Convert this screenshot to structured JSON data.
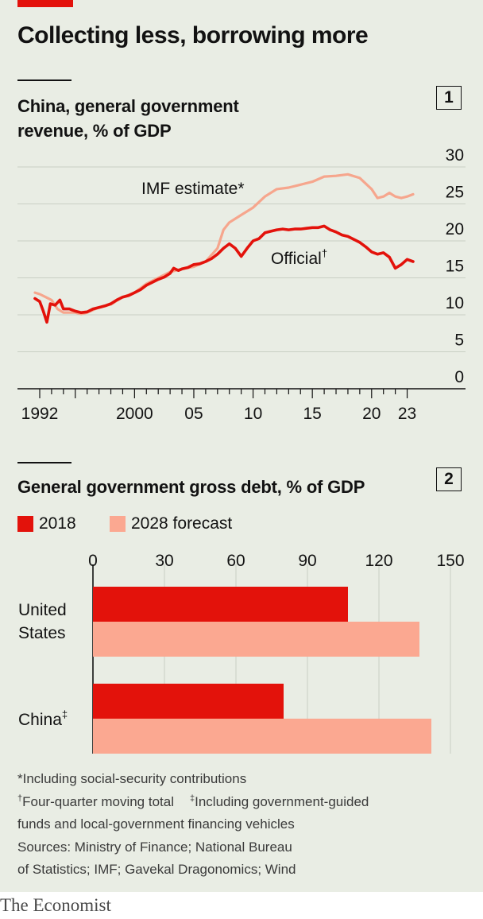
{
  "headline": "Collecting less, borrowing more",
  "brand": "The Economist",
  "colors": {
    "red": "#e3120b",
    "pink": "#f6a68d",
    "light_red": "#fba891",
    "background": "#e9ede4",
    "grid": "#c9cfc4"
  },
  "panel1": {
    "badge": "1",
    "title_line1": "China, general government",
    "title_line2": "revenue, % of GDP",
    "label_imf": "IMF estimate*",
    "label_official": "Official",
    "label_official_mark": "†"
  },
  "panel2": {
    "badge": "2",
    "title": "General government gross debt, % of GDP",
    "legend_2018": "2018",
    "legend_2028": "2028 forecast",
    "row_us_line1": "United",
    "row_us_line2": "States",
    "row_china": "China",
    "row_china_mark": "‡"
  },
  "notes": {
    "line1": "*Including social-security contributions",
    "line2a_mark": "†",
    "line2a": "Four-quarter moving total",
    "line2b_mark": "‡",
    "line2b": "Including government-guided",
    "line3": "funds and local-government financing vehicles",
    "line4": "Sources: Ministry of Finance; National Bureau",
    "line5": "of Statistics; IMF; Gavekal Dragonomics; Wind"
  },
  "chart_data": [
    {
      "type": "line",
      "title": "China, general government revenue, % of GDP",
      "ylim": [
        0,
        30
      ],
      "yticks": [
        0,
        5,
        10,
        15,
        20,
        25,
        30
      ],
      "xlim": [
        1991.5,
        2024.5
      ],
      "xtick_labels": [
        {
          "x": 1992,
          "label": "1992"
        },
        {
          "x": 2000,
          "label": "2000"
        },
        {
          "x": 2005,
          "label": "05"
        },
        {
          "x": 2010,
          "label": "10"
        },
        {
          "x": 2015,
          "label": "15"
        },
        {
          "x": 2020,
          "label": "20"
        },
        {
          "x": 2023,
          "label": "23"
        }
      ],
      "grid": true,
      "series": [
        {
          "name": "IMF estimate*",
          "color": "#f6a68d",
          "points": [
            [
              1991.6,
              13.0
            ],
            [
              1992.0,
              12.8
            ],
            [
              1992.5,
              12.4
            ],
            [
              1993.0,
              12.0
            ],
            [
              1993.5,
              10.8
            ],
            [
              1994.0,
              10.3
            ],
            [
              1995.0,
              10.3
            ],
            [
              1995.5,
              10.1
            ],
            [
              1996.0,
              10.3
            ],
            [
              1997.0,
              11.0
            ],
            [
              1998.0,
              11.4
            ],
            [
              1999.0,
              12.4
            ],
            [
              2000.0,
              13.0
            ],
            [
              2001.0,
              14.2
            ],
            [
              2002.0,
              15.0
            ],
            [
              2003.0,
              15.8
            ],
            [
              2004.0,
              16.2
            ],
            [
              2005.0,
              16.5
            ],
            [
              2006.0,
              17.2
            ],
            [
              2007.0,
              19.0
            ],
            [
              2007.5,
              21.5
            ],
            [
              2008.0,
              22.5
            ],
            [
              2009.0,
              23.5
            ],
            [
              2010.0,
              24.5
            ],
            [
              2011.0,
              26.0
            ],
            [
              2012.0,
              27.0
            ],
            [
              2013.0,
              27.2
            ],
            [
              2014.0,
              27.6
            ],
            [
              2015.0,
              28.0
            ],
            [
              2016.0,
              28.7
            ],
            [
              2017.0,
              28.8
            ],
            [
              2018.0,
              29.0
            ],
            [
              2019.0,
              28.5
            ],
            [
              2020.0,
              27.0
            ],
            [
              2020.5,
              25.8
            ],
            [
              2021.0,
              26.0
            ],
            [
              2021.5,
              26.5
            ],
            [
              2022.0,
              26.0
            ],
            [
              2022.5,
              25.8
            ],
            [
              2023.0,
              26.0
            ],
            [
              2023.5,
              26.3
            ]
          ]
        },
        {
          "name": "Official",
          "color": "#e3120b",
          "points": [
            [
              1991.6,
              12.2
            ],
            [
              1992.0,
              11.8
            ],
            [
              1992.3,
              10.5
            ],
            [
              1992.6,
              9.0
            ],
            [
              1992.9,
              11.5
            ],
            [
              1993.3,
              11.3
            ],
            [
              1993.7,
              12.0
            ],
            [
              1994.0,
              10.8
            ],
            [
              1994.5,
              10.8
            ],
            [
              1995.0,
              10.5
            ],
            [
              1995.5,
              10.3
            ],
            [
              1996.0,
              10.4
            ],
            [
              1996.5,
              10.8
            ],
            [
              1997.0,
              11.0
            ],
            [
              1997.5,
              11.2
            ],
            [
              1998.0,
              11.5
            ],
            [
              1998.5,
              12.0
            ],
            [
              1999.0,
              12.4
            ],
            [
              1999.5,
              12.6
            ],
            [
              2000.0,
              13.0
            ],
            [
              2000.5,
              13.4
            ],
            [
              2001.0,
              14.0
            ],
            [
              2001.5,
              14.4
            ],
            [
              2002.0,
              14.8
            ],
            [
              2002.5,
              15.1
            ],
            [
              2003.0,
              15.6
            ],
            [
              2003.3,
              16.3
            ],
            [
              2003.7,
              16.0
            ],
            [
              2004.0,
              16.2
            ],
            [
              2004.5,
              16.4
            ],
            [
              2005.0,
              16.8
            ],
            [
              2005.5,
              16.9
            ],
            [
              2006.0,
              17.2
            ],
            [
              2006.5,
              17.6
            ],
            [
              2007.0,
              18.2
            ],
            [
              2007.5,
              19.0
            ],
            [
              2008.0,
              19.6
            ],
            [
              2008.5,
              19.0
            ],
            [
              2009.0,
              17.9
            ],
            [
              2009.5,
              19.0
            ],
            [
              2010.0,
              20.0
            ],
            [
              2010.5,
              20.3
            ],
            [
              2011.0,
              21.1
            ],
            [
              2011.5,
              21.3
            ],
            [
              2012.0,
              21.5
            ],
            [
              2012.5,
              21.6
            ],
            [
              2013.0,
              21.5
            ],
            [
              2013.5,
              21.6
            ],
            [
              2014.0,
              21.6
            ],
            [
              2014.5,
              21.7
            ],
            [
              2015.0,
              21.8
            ],
            [
              2015.5,
              21.8
            ],
            [
              2016.0,
              22.0
            ],
            [
              2016.5,
              21.5
            ],
            [
              2017.0,
              21.2
            ],
            [
              2017.5,
              20.8
            ],
            [
              2018.0,
              20.6
            ],
            [
              2018.5,
              20.2
            ],
            [
              2019.0,
              19.8
            ],
            [
              2019.5,
              19.2
            ],
            [
              2020.0,
              18.5
            ],
            [
              2020.5,
              18.2
            ],
            [
              2021.0,
              18.4
            ],
            [
              2021.5,
              17.8
            ],
            [
              2022.0,
              16.3
            ],
            [
              2022.5,
              16.8
            ],
            [
              2023.0,
              17.5
            ],
            [
              2023.5,
              17.2
            ]
          ]
        }
      ]
    },
    {
      "type": "bar",
      "orientation": "horizontal",
      "title": "General government gross debt, % of GDP",
      "categories": [
        "United States",
        "China‡"
      ],
      "xlim": [
        0,
        150
      ],
      "xticks": [
        0,
        30,
        60,
        90,
        120,
        150
      ],
      "grid": true,
      "legend": "top-left",
      "series": [
        {
          "name": "2018",
          "color": "#e3120b",
          "values": [
            107,
            80
          ]
        },
        {
          "name": "2028 forecast",
          "color": "#fba891",
          "values": [
            137,
            142
          ]
        }
      ]
    }
  ]
}
